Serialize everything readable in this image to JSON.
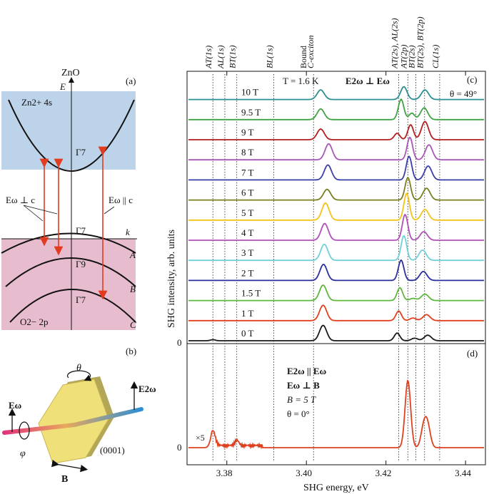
{
  "panel_a": {
    "tag": "(a)",
    "title": "ZnO",
    "energy_axis": "E",
    "k_axis": "k",
    "cb_label": "Zn2+ 4s",
    "vb_label": "O2− 2p",
    "gamma_cb": "Γ7",
    "gamma_a": "Γ7",
    "gamma_b": "Γ9",
    "gamma_c": "Γ7",
    "band_A": "A",
    "band_B": "B",
    "band_C": "C",
    "pol_perp": "Eω ⊥ c",
    "pol_par": "Eω || c",
    "colors": {
      "cb": "#bcd3ea",
      "vb": "#e8bccf",
      "arrow": "#e23b1e"
    }
  },
  "panel_b": {
    "tag": "(b)",
    "theta": "θ",
    "phi": "φ",
    "e_in": "Eω",
    "e_out": "E2ω",
    "b_field": "B",
    "plane": "(0001)",
    "colors": {
      "crystal": "#f0e07a",
      "beam_in": "#e0347c",
      "beam_out": "#2d8fd6"
    }
  },
  "panel_c": {
    "tag": "(c)",
    "temperature": "T = 1.6 K",
    "geometry": "E2ω ⊥ Eω",
    "angle": "θ = 49°",
    "transition_labels": [
      "AT(1s)",
      "AL(1s)",
      "BT(1s)",
      "BL(1s)",
      "Bound",
      "C-exciton",
      "AT(2s), AL(2s)",
      "AT(2p)",
      "BT(2s)",
      "BT(2s), BT(2p)",
      "CL(1s)"
    ]
  },
  "panel_d": {
    "tag": "(d)",
    "line1": "E2ω || Eω",
    "line2": "Eω ⊥ B",
    "line3": "B = 5 T",
    "line4": "θ = 0°",
    "scale_note": "×5"
  },
  "chart_data": {
    "type": "line",
    "xlabel": "SHG energy, eV",
    "ylabel": "SHG intensity, arb. units",
    "xlim": [
      3.37,
      3.445
    ],
    "x_ticks": [
      "3.38",
      "3.40",
      "3.42",
      "3.44"
    ],
    "zero_label": "0",
    "series": [
      {
        "name": "0 T",
        "color": "#1a1a1a",
        "peaks": [
          [
            3.4042,
            0.72,
            0.0009
          ],
          [
            3.4228,
            0.36,
            0.0007
          ],
          [
            3.4272,
            0.12,
            0.0008
          ],
          [
            3.4305,
            0.26,
            0.0009
          ],
          [
            3.3765,
            0.05,
            0.0006
          ]
        ]
      },
      {
        "name": "1 T",
        "color": "#e0401e",
        "peaks": [
          [
            3.4042,
            0.72,
            0.0009
          ],
          [
            3.4232,
            0.45,
            0.0007
          ],
          [
            3.4268,
            0.12,
            0.0008
          ],
          [
            3.4302,
            0.28,
            0.0009
          ]
        ]
      },
      {
        "name": "1.5 T",
        "color": "#5cb83a",
        "peaks": [
          [
            3.4042,
            0.72,
            0.0009
          ],
          [
            3.4235,
            0.6,
            0.0007
          ],
          [
            3.4268,
            0.1,
            0.0008
          ],
          [
            3.4298,
            0.3,
            0.0009
          ]
        ]
      },
      {
        "name": "2 T",
        "color": "#2b2f9a",
        "peaks": [
          [
            3.4043,
            0.75,
            0.0009
          ],
          [
            3.4238,
            0.95,
            0.0007
          ],
          [
            3.4294,
            0.42,
            0.0009
          ]
        ]
      },
      {
        "name": "3 T",
        "color": "#6fd0d8",
        "peaks": [
          [
            3.4045,
            0.75,
            0.0009
          ],
          [
            3.4245,
            1.15,
            0.0007
          ],
          [
            3.4292,
            0.48,
            0.0009
          ]
        ]
      },
      {
        "name": "4 T",
        "color": "#b04fb7",
        "peaks": [
          [
            3.4046,
            0.78,
            0.0009
          ],
          [
            3.4248,
            1.2,
            0.0007
          ],
          [
            3.4295,
            0.4,
            0.0009
          ]
        ]
      },
      {
        "name": "5 T",
        "color": "#f3c31a",
        "peaks": [
          [
            3.4048,
            0.8,
            0.0009
          ],
          [
            3.4252,
            1.25,
            0.0007
          ],
          [
            3.4298,
            0.5,
            0.0009
          ]
        ]
      },
      {
        "name": "6 T",
        "color": "#7a7f1d",
        "peaks": [
          [
            3.4052,
            0.5,
            0.0009
          ],
          [
            3.4255,
            1.05,
            0.0007
          ],
          [
            3.4302,
            0.55,
            0.0009
          ]
        ]
      },
      {
        "name": "7 T",
        "color": "#3a3fa8",
        "peaks": [
          [
            3.4054,
            0.7,
            0.0009
          ],
          [
            3.4258,
            1.1,
            0.0007
          ],
          [
            3.4306,
            0.65,
            0.0009
          ]
        ]
      },
      {
        "name": "8 T",
        "color": "#a856b8",
        "peaks": [
          [
            3.4056,
            0.75,
            0.0009
          ],
          [
            3.426,
            1.05,
            0.0007
          ],
          [
            3.4308,
            0.7,
            0.0009
          ]
        ]
      },
      {
        "name": "9 T",
        "color": "#b51f1f",
        "peaks": [
          [
            3.4036,
            0.5,
            0.0009
          ],
          [
            3.4262,
            0.7,
            0.0007
          ],
          [
            3.4298,
            0.85,
            0.0009
          ],
          [
            3.4228,
            0.3,
            0.0007
          ]
        ]
      },
      {
        "name": "9.5 T",
        "color": "#3fa342",
        "peaks": [
          [
            3.4036,
            0.5,
            0.0009
          ],
          [
            3.4238,
            0.95,
            0.0007
          ],
          [
            3.4265,
            0.3,
            0.0007
          ],
          [
            3.4296,
            0.55,
            0.0009
          ]
        ]
      },
      {
        "name": "10 T",
        "color": "#2b8f94",
        "peaks": [
          [
            3.4036,
            0.45,
            0.0009
          ],
          [
            3.4245,
            0.6,
            0.0008
          ],
          [
            3.4298,
            0.45,
            0.0009
          ]
        ]
      }
    ],
    "panel_d_series": {
      "name": "5 T",
      "color": "#e0401e",
      "peaks": [
        [
          3.3765,
          0.22,
          0.0006
        ],
        [
          3.3825,
          0.08,
          0.0005
        ],
        [
          3.4255,
          1.0,
          0.0007
        ],
        [
          3.4295,
          0.3,
          0.0007
        ],
        [
          3.4305,
          0.3,
          0.0007
        ]
      ]
    },
    "marker_energies": [
      3.3765,
      3.3795,
      3.3825,
      3.3918,
      3.4018,
      3.4232,
      3.4255,
      3.4275,
      3.4297,
      3.4335
    ]
  }
}
